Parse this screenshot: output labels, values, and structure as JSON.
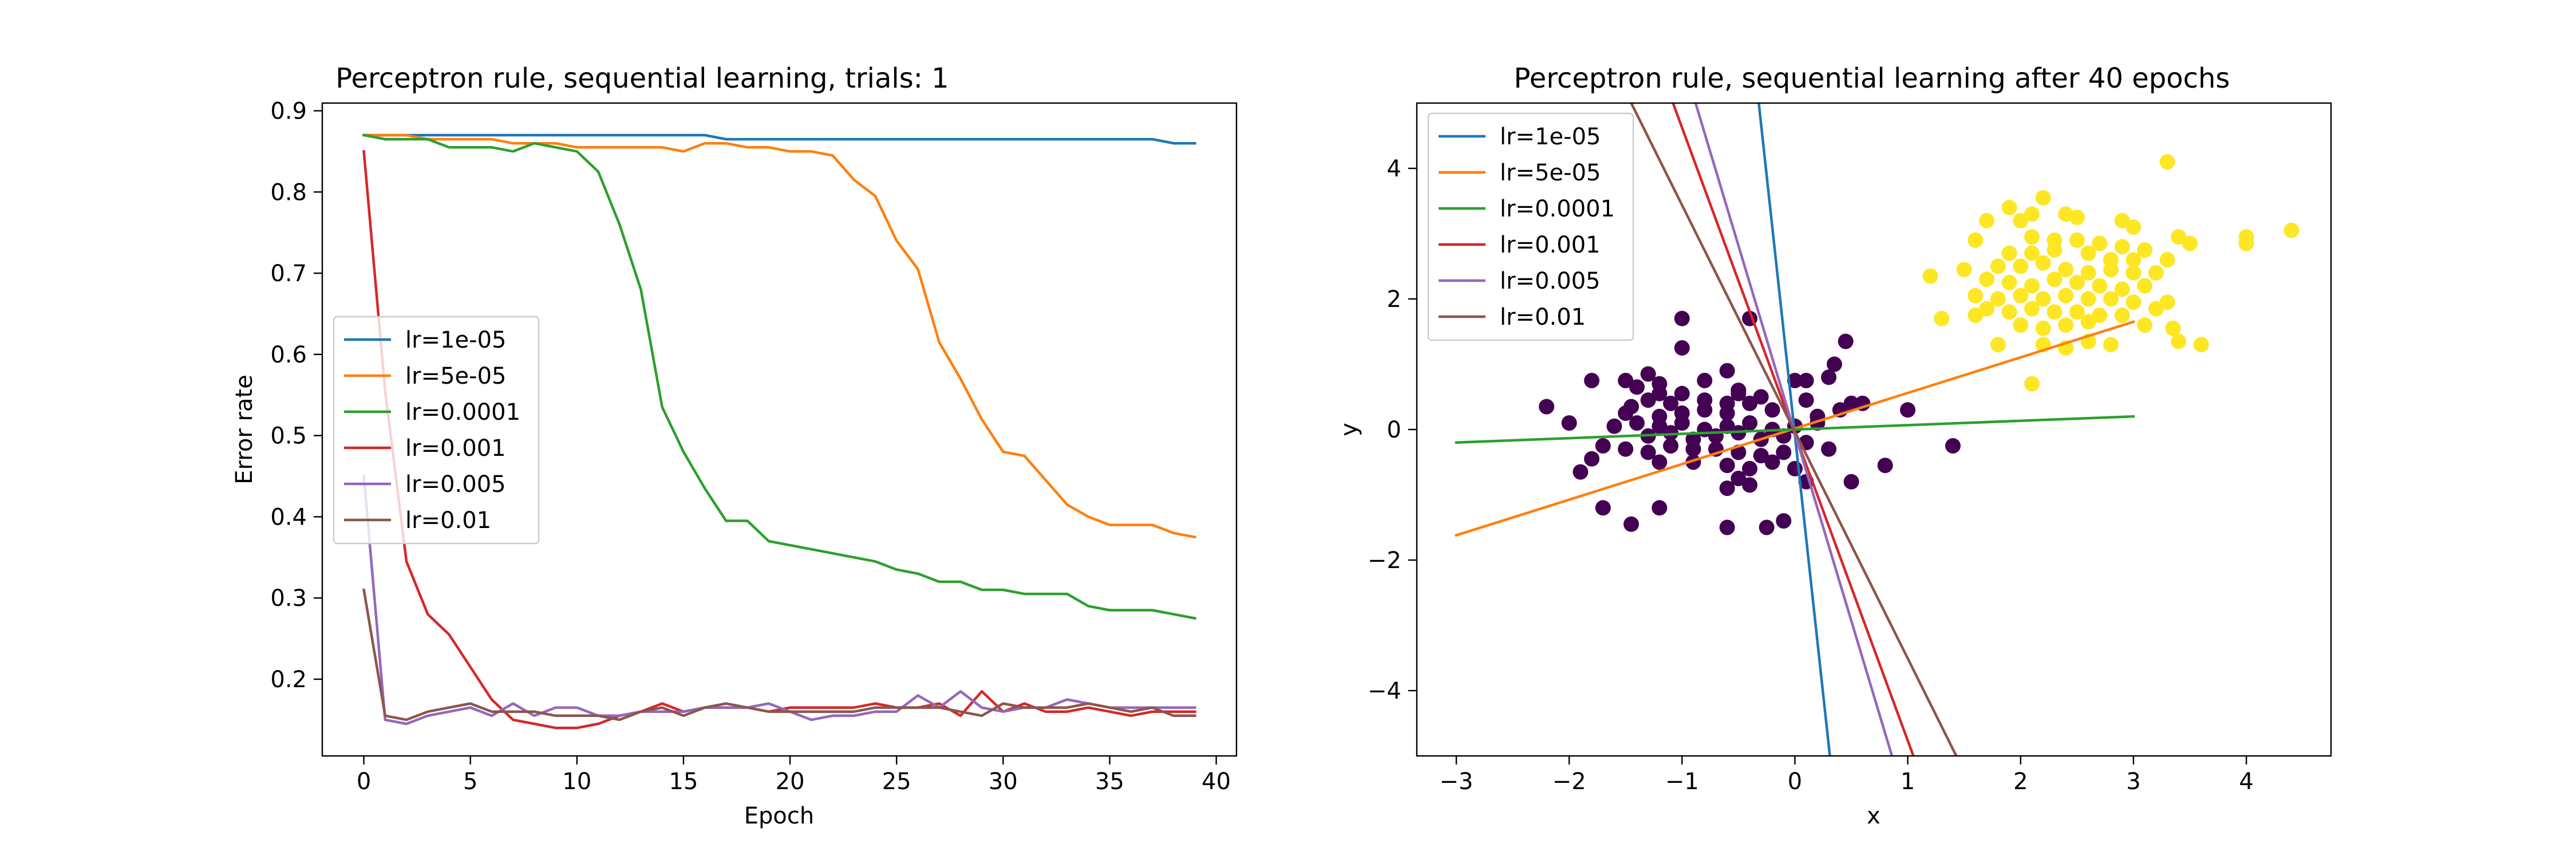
{
  "colors": {
    "C0": "#1f77b4",
    "C1": "#ff7f0e",
    "C2": "#2ca02c",
    "C3": "#d62728",
    "C4": "#9467bd",
    "C5": "#8c564b",
    "class0": "#440154",
    "class1": "#fde725"
  },
  "chart_data": [
    {
      "type": "line",
      "title": "Perceptron rule, sequential learning, trials: 1",
      "xlabel": "Epoch",
      "ylabel": "Error rate",
      "xlim": [
        -1.95,
        40.95
      ],
      "ylim": [
        0.1055,
        0.9095
      ],
      "xticks": [
        0,
        5,
        10,
        15,
        20,
        25,
        30,
        35,
        40
      ],
      "yticks": [
        0.2,
        0.3,
        0.4,
        0.5,
        0.6,
        0.7,
        0.8,
        0.9
      ],
      "legend_position": "center-left",
      "x": [
        0,
        1,
        2,
        3,
        4,
        5,
        6,
        7,
        8,
        9,
        10,
        11,
        12,
        13,
        14,
        15,
        16,
        17,
        18,
        19,
        20,
        21,
        22,
        23,
        24,
        25,
        26,
        27,
        28,
        29,
        30,
        31,
        32,
        33,
        34,
        35,
        36,
        37,
        38,
        39
      ],
      "series": [
        {
          "name": "lr=1e-05",
          "color": "C0",
          "values": [
            0.87,
            0.87,
            0.87,
            0.87,
            0.87,
            0.87,
            0.87,
            0.87,
            0.87,
            0.87,
            0.87,
            0.87,
            0.87,
            0.87,
            0.87,
            0.87,
            0.87,
            0.865,
            0.865,
            0.865,
            0.865,
            0.865,
            0.865,
            0.865,
            0.865,
            0.865,
            0.865,
            0.865,
            0.865,
            0.865,
            0.865,
            0.865,
            0.865,
            0.865,
            0.865,
            0.865,
            0.865,
            0.865,
            0.86,
            0.86
          ]
        },
        {
          "name": "lr=5e-05",
          "color": "C1",
          "values": [
            0.87,
            0.87,
            0.87,
            0.865,
            0.865,
            0.865,
            0.865,
            0.86,
            0.86,
            0.86,
            0.855,
            0.855,
            0.855,
            0.855,
            0.855,
            0.85,
            0.86,
            0.86,
            0.855,
            0.855,
            0.85,
            0.85,
            0.845,
            0.815,
            0.795,
            0.74,
            0.705,
            0.615,
            0.57,
            0.52,
            0.48,
            0.475,
            0.445,
            0.415,
            0.4,
            0.39,
            0.39,
            0.39,
            0.38,
            0.375
          ]
        },
        {
          "name": "lr=0.0001",
          "color": "C2",
          "values": [
            0.87,
            0.865,
            0.865,
            0.865,
            0.855,
            0.855,
            0.855,
            0.85,
            0.86,
            0.855,
            0.85,
            0.825,
            0.76,
            0.68,
            0.535,
            0.48,
            0.435,
            0.395,
            0.395,
            0.37,
            0.365,
            0.36,
            0.355,
            0.35,
            0.345,
            0.335,
            0.33,
            0.32,
            0.32,
            0.31,
            0.31,
            0.305,
            0.305,
            0.305,
            0.29,
            0.285,
            0.285,
            0.285,
            0.28,
            0.275
          ]
        },
        {
          "name": "lr=0.001",
          "color": "C3",
          "values": [
            0.85,
            0.555,
            0.345,
            0.28,
            0.255,
            0.215,
            0.175,
            0.15,
            0.145,
            0.14,
            0.14,
            0.145,
            0.155,
            0.16,
            0.17,
            0.16,
            0.165,
            0.165,
            0.165,
            0.16,
            0.165,
            0.165,
            0.165,
            0.165,
            0.17,
            0.165,
            0.165,
            0.17,
            0.155,
            0.185,
            0.16,
            0.17,
            0.16,
            0.16,
            0.165,
            0.16,
            0.155,
            0.16,
            0.16,
            0.16
          ]
        },
        {
          "name": "lr=0.005",
          "color": "C4",
          "values": [
            0.45,
            0.15,
            0.145,
            0.155,
            0.16,
            0.165,
            0.155,
            0.17,
            0.155,
            0.165,
            0.165,
            0.155,
            0.155,
            0.16,
            0.16,
            0.16,
            0.165,
            0.165,
            0.165,
            0.17,
            0.16,
            0.15,
            0.155,
            0.155,
            0.16,
            0.16,
            0.18,
            0.165,
            0.185,
            0.165,
            0.16,
            0.165,
            0.165,
            0.175,
            0.17,
            0.165,
            0.165,
            0.165,
            0.165,
            0.165
          ]
        },
        {
          "name": "lr=0.01",
          "color": "C5",
          "values": [
            0.31,
            0.155,
            0.15,
            0.16,
            0.165,
            0.17,
            0.16,
            0.16,
            0.16,
            0.155,
            0.155,
            0.155,
            0.15,
            0.16,
            0.165,
            0.155,
            0.165,
            0.17,
            0.165,
            0.16,
            0.16,
            0.16,
            0.16,
            0.16,
            0.165,
            0.165,
            0.165,
            0.165,
            0.16,
            0.155,
            0.17,
            0.165,
            0.165,
            0.165,
            0.17,
            0.165,
            0.16,
            0.165,
            0.155,
            0.155
          ]
        }
      ]
    },
    {
      "type": "scatter",
      "title": "Perceptron rule, sequential learning after 40 epochs",
      "xlabel": "x",
      "ylabel": "y",
      "xlim": [
        -3.35,
        4.75
      ],
      "ylim": [
        -5,
        5
      ],
      "xticks": [
        -3,
        -2,
        -1,
        0,
        1,
        2,
        3,
        4
      ],
      "yticks": [
        -4,
        -2,
        0,
        2,
        4
      ],
      "legend_position": "upper-left",
      "boundaries": [
        {
          "name": "lr=1e-05",
          "color": "C0",
          "x": [
            -0.32,
            0.31
          ],
          "y": [
            5,
            -5
          ]
        },
        {
          "name": "lr=5e-05",
          "color": "C1",
          "x": [
            -3,
            3
          ],
          "y": [
            -1.62,
            1.65
          ]
        },
        {
          "name": "lr=0.0001",
          "color": "C2",
          "x": [
            -3,
            3
          ],
          "y": [
            -0.2,
            0.2
          ]
        },
        {
          "name": "lr=0.001",
          "color": "C3",
          "x": [
            -1.08,
            1.05
          ],
          "y": [
            5,
            -5
          ]
        },
        {
          "name": "lr=0.005",
          "color": "C4",
          "x": [
            -0.88,
            0.86
          ],
          "y": [
            5,
            -5
          ]
        },
        {
          "name": "lr=0.01",
          "color": "C5",
          "x": [
            -1.45,
            1.43
          ],
          "y": [
            5,
            -5
          ]
        }
      ],
      "points": [
        {
          "class": "class0",
          "points": [
            [
              -1.0,
              1.7
            ],
            [
              -0.4,
              1.7
            ],
            [
              0.45,
              1.35
            ],
            [
              -1.0,
              1.25
            ],
            [
              -0.6,
              0.9
            ],
            [
              -1.3,
              0.85
            ],
            [
              0.35,
              1.0
            ],
            [
              -1.8,
              0.75
            ],
            [
              -1.5,
              0.75
            ],
            [
              -1.2,
              0.7
            ],
            [
              -0.8,
              0.75
            ],
            [
              -1.4,
              0.65
            ],
            [
              -1.2,
              0.55
            ],
            [
              -1.0,
              0.55
            ],
            [
              -0.5,
              0.6
            ],
            [
              0.0,
              0.75
            ],
            [
              0.1,
              0.75
            ],
            [
              0.3,
              0.8
            ],
            [
              -0.5,
              0.55
            ],
            [
              -0.3,
              0.5
            ],
            [
              -2.2,
              0.35
            ],
            [
              -1.45,
              0.35
            ],
            [
              -1.3,
              0.45
            ],
            [
              -1.1,
              0.4
            ],
            [
              -0.8,
              0.45
            ],
            [
              -0.6,
              0.4
            ],
            [
              -0.4,
              0.4
            ],
            [
              0.1,
              0.45
            ],
            [
              0.5,
              0.4
            ],
            [
              0.6,
              0.4
            ],
            [
              1.0,
              0.3
            ],
            [
              -1.5,
              0.25
            ],
            [
              -1.2,
              0.2
            ],
            [
              -1.0,
              0.25
            ],
            [
              -0.8,
              0.3
            ],
            [
              -0.6,
              0.25
            ],
            [
              -0.2,
              0.3
            ],
            [
              0.2,
              0.2
            ],
            [
              0.4,
              0.3
            ],
            [
              -2.0,
              0.1
            ],
            [
              -1.6,
              0.05
            ],
            [
              -1.4,
              0.1
            ],
            [
              -1.2,
              0.05
            ],
            [
              -1.0,
              0.1
            ],
            [
              -0.8,
              0.0
            ],
            [
              -0.6,
              0.05
            ],
            [
              -0.4,
              0.1
            ],
            [
              -0.2,
              0.0
            ],
            [
              0.0,
              0.05
            ],
            [
              0.2,
              0.1
            ],
            [
              -1.3,
              -0.1
            ],
            [
              -1.1,
              -0.05
            ],
            [
              -0.9,
              -0.15
            ],
            [
              -0.7,
              -0.1
            ],
            [
              -0.5,
              -0.05
            ],
            [
              -0.3,
              -0.15
            ],
            [
              -0.1,
              -0.1
            ],
            [
              0.1,
              -0.2
            ],
            [
              0.3,
              -0.3
            ],
            [
              -1.7,
              -0.25
            ],
            [
              -1.5,
              -0.3
            ],
            [
              -1.3,
              -0.35
            ],
            [
              -1.1,
              -0.25
            ],
            [
              -0.9,
              -0.3
            ],
            [
              -0.7,
              -0.3
            ],
            [
              -0.5,
              -0.35
            ],
            [
              -0.3,
              -0.4
            ],
            [
              -0.1,
              -0.35
            ],
            [
              1.4,
              -0.25
            ],
            [
              -1.8,
              -0.45
            ],
            [
              -1.2,
              -0.5
            ],
            [
              -0.9,
              -0.5
            ],
            [
              -0.6,
              -0.55
            ],
            [
              -0.4,
              -0.6
            ],
            [
              -0.2,
              -0.5
            ],
            [
              0.0,
              -0.6
            ],
            [
              0.8,
              -0.55
            ],
            [
              -1.9,
              -0.65
            ],
            [
              -0.5,
              -0.75
            ],
            [
              -0.4,
              -0.85
            ],
            [
              -0.6,
              -0.9
            ],
            [
              0.1,
              -0.8
            ],
            [
              0.5,
              -0.8
            ],
            [
              -1.7,
              -1.2
            ],
            [
              -1.2,
              -1.2
            ],
            [
              -0.6,
              -1.5
            ],
            [
              -0.25,
              -1.5
            ],
            [
              -1.45,
              -1.45
            ],
            [
              -0.1,
              -1.4
            ]
          ]
        },
        {
          "class": "class1",
          "points": [
            [
              3.3,
              4.1
            ],
            [
              2.2,
              3.55
            ],
            [
              1.9,
              3.4
            ],
            [
              2.1,
              3.3
            ],
            [
              2.4,
              3.3
            ],
            [
              1.7,
              3.2
            ],
            [
              2.0,
              3.2
            ],
            [
              2.5,
              3.25
            ],
            [
              2.9,
              3.2
            ],
            [
              3.0,
              3.1
            ],
            [
              3.4,
              2.95
            ],
            [
              4.0,
              2.95
            ],
            [
              4.4,
              3.05
            ],
            [
              1.6,
              2.9
            ],
            [
              2.1,
              2.95
            ],
            [
              2.3,
              2.9
            ],
            [
              2.5,
              2.9
            ],
            [
              2.7,
              2.85
            ],
            [
              2.9,
              2.8
            ],
            [
              3.1,
              2.75
            ],
            [
              3.5,
              2.85
            ],
            [
              4.0,
              2.85
            ],
            [
              1.9,
              2.7
            ],
            [
              2.1,
              2.7
            ],
            [
              2.3,
              2.75
            ],
            [
              2.6,
              2.7
            ],
            [
              2.8,
              2.6
            ],
            [
              3.0,
              2.6
            ],
            [
              3.3,
              2.6
            ],
            [
              1.2,
              2.35
            ],
            [
              1.5,
              2.45
            ],
            [
              1.8,
              2.5
            ],
            [
              2.0,
              2.5
            ],
            [
              2.2,
              2.55
            ],
            [
              2.4,
              2.45
            ],
            [
              2.6,
              2.4
            ],
            [
              2.8,
              2.45
            ],
            [
              3.0,
              2.4
            ],
            [
              3.2,
              2.4
            ],
            [
              1.7,
              2.3
            ],
            [
              1.9,
              2.25
            ],
            [
              2.1,
              2.2
            ],
            [
              2.3,
              2.3
            ],
            [
              2.5,
              2.25
            ],
            [
              2.7,
              2.2
            ],
            [
              2.9,
              2.15
            ],
            [
              3.1,
              2.2
            ],
            [
              1.6,
              2.05
            ],
            [
              1.8,
              2.0
            ],
            [
              2.0,
              2.05
            ],
            [
              2.2,
              2.0
            ],
            [
              2.4,
              2.05
            ],
            [
              2.6,
              2.0
            ],
            [
              2.8,
              2.0
            ],
            [
              3.0,
              1.95
            ],
            [
              3.3,
              1.95
            ],
            [
              1.7,
              1.85
            ],
            [
              1.9,
              1.8
            ],
            [
              2.1,
              1.85
            ],
            [
              2.3,
              1.8
            ],
            [
              2.5,
              1.8
            ],
            [
              2.7,
              1.75
            ],
            [
              2.9,
              1.75
            ],
            [
              3.2,
              1.85
            ],
            [
              1.3,
              1.7
            ],
            [
              1.6,
              1.75
            ],
            [
              2.0,
              1.6
            ],
            [
              2.2,
              1.55
            ],
            [
              2.4,
              1.6
            ],
            [
              2.6,
              1.65
            ],
            [
              3.1,
              1.6
            ],
            [
              3.35,
              1.55
            ],
            [
              3.4,
              1.35
            ],
            [
              3.6,
              1.3
            ],
            [
              1.8,
              1.3
            ],
            [
              2.2,
              1.3
            ],
            [
              2.4,
              1.25
            ],
            [
              2.8,
              1.3
            ],
            [
              2.6,
              1.35
            ],
            [
              2.1,
              0.7
            ]
          ]
        }
      ]
    }
  ]
}
